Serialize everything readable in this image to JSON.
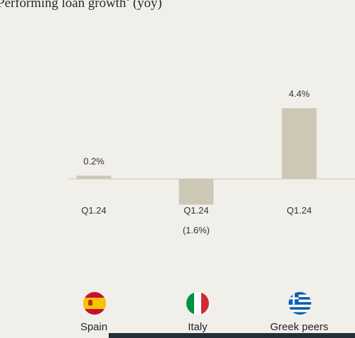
{
  "title_text": "Performing loan growth",
  "title_sup": "1",
  "title_suffix": " (yoy)",
  "colors": {
    "bar": "#cdc7b6",
    "baseline": "#c9c4b7",
    "background": "#f1efea"
  },
  "chart_data": {
    "type": "bar",
    "title": "Performing loan growth (yoy)",
    "categories": [
      "Spain",
      "Italy",
      "Greek peers"
    ],
    "x_tick_labels": [
      "Q1.24",
      "Q1.24",
      "Q1.24"
    ],
    "values": [
      0.2,
      -1.6,
      4.4
    ],
    "value_labels": [
      "0.2%",
      "(1.6%)",
      "4.4%"
    ],
    "unit": "%"
  },
  "countries": [
    {
      "name": "Spain",
      "flag_icon": "spain-flag-icon"
    },
    {
      "name": "Italy",
      "flag_icon": "italy-flag-icon"
    },
    {
      "name": "Greek peers",
      "flag_icon": "greece-flag-icon"
    }
  ]
}
